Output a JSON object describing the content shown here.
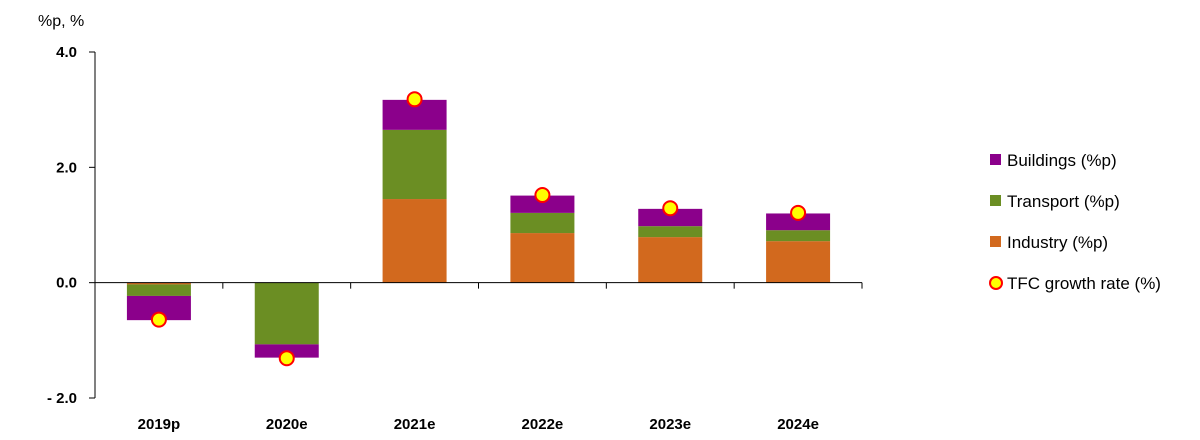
{
  "chart_data": {
    "type": "bar",
    "stacked": true,
    "unit_label": "%p, %",
    "categories": [
      "2019p",
      "2020e",
      "2021e",
      "2022e",
      "2023e",
      "2024e"
    ],
    "ylim": [
      -2.0,
      4.0
    ],
    "yticks": [
      4.0,
      2.0,
      0.0,
      -2.0
    ],
    "ytick_labels": [
      "4.0",
      "2.0",
      "0.0",
      "- 2.0"
    ],
    "grid": false,
    "legend_position": "right",
    "series": [
      {
        "name": "Industry (%p)",
        "color": "#D2691E",
        "values": [
          -0.03,
          0.0,
          1.45,
          0.86,
          0.79,
          0.72
        ]
      },
      {
        "name": "Transport (%p)",
        "color": "#6B8E23",
        "values": [
          -0.2,
          -1.07,
          1.2,
          0.35,
          0.19,
          0.19
        ]
      },
      {
        "name": "Buildings (%p)",
        "color": "#8B008B",
        "values": [
          -0.42,
          -0.23,
          0.52,
          0.3,
          0.3,
          0.29
        ]
      }
    ],
    "markers": {
      "name": "TFC growth rate (%)",
      "fill": "#FFFF00",
      "stroke": "#FF0000",
      "values": [
        -0.64,
        -1.31,
        3.18,
        1.52,
        1.29,
        1.21
      ]
    },
    "legend_order": [
      "Buildings (%p)",
      "Transport (%p)",
      "Industry (%p)",
      "TFC growth rate (%)"
    ]
  }
}
